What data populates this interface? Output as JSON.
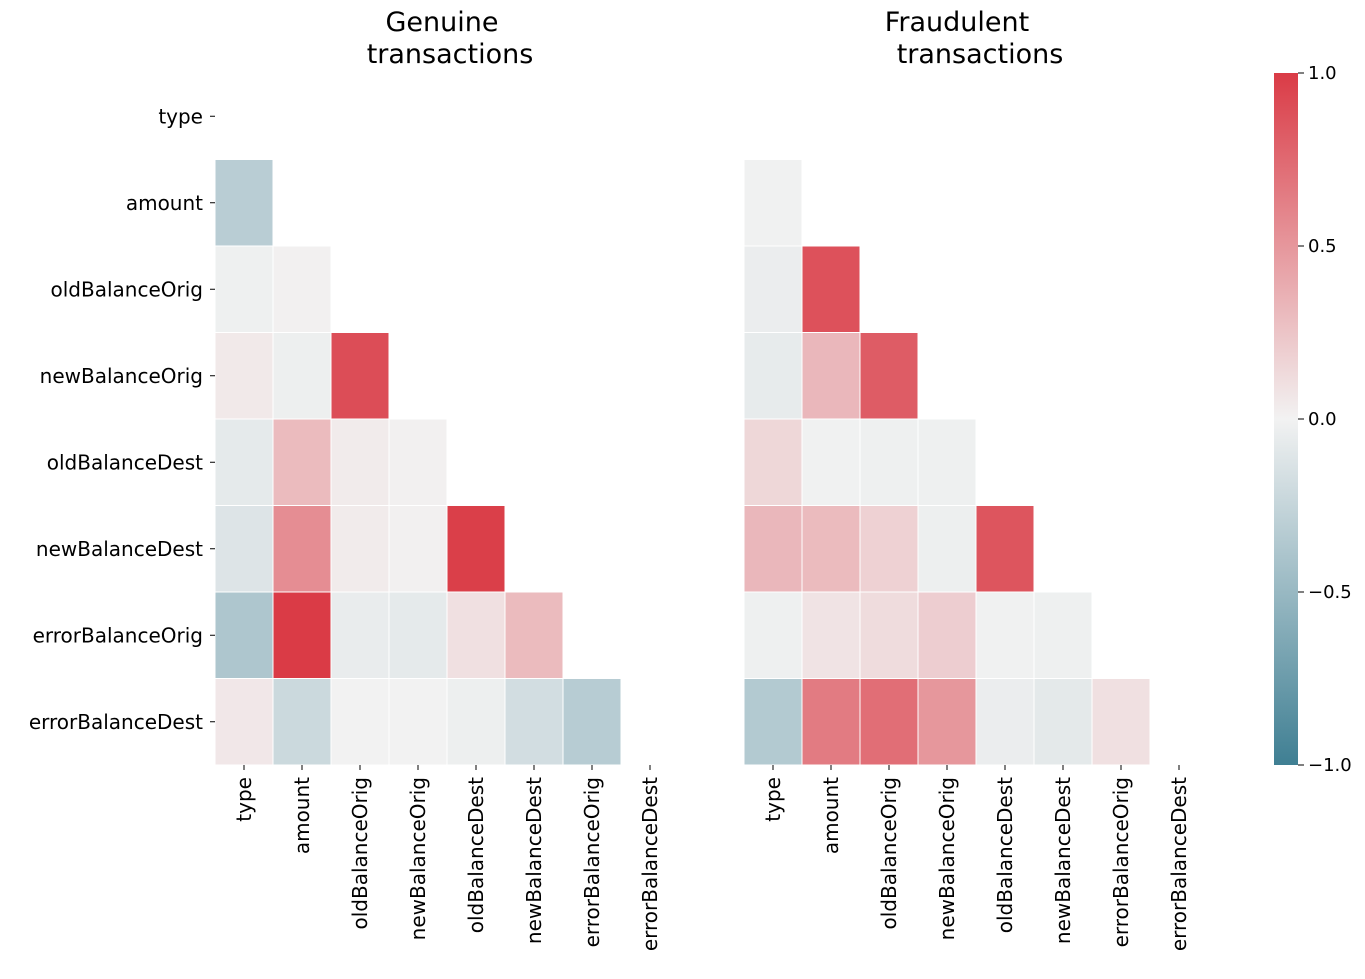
{
  "chart_data": [
    {
      "type": "heatmap",
      "title_lines": [
        "Genuine",
        "transactions"
      ],
      "row_labels": [
        "type",
        "amount",
        "oldBalanceOrig",
        "newBalanceOrig",
        "oldBalanceDest",
        "newBalanceDest",
        "errorBalanceOrig",
        "errorBalanceDest"
      ],
      "col_labels": [
        "type",
        "amount",
        "oldBalanceOrig",
        "newBalanceOrig",
        "oldBalanceDest",
        "newBalanceDest",
        "errorBalanceOrig",
        "errorBalanceDest"
      ],
      "mask": "upper-triangle-including-diagonal",
      "values": [
        [
          null,
          null,
          null,
          null,
          null,
          null,
          null,
          null
        ],
        [
          -0.32,
          null,
          null,
          null,
          null,
          null,
          null,
          null
        ],
        [
          -0.02,
          0.01,
          null,
          null,
          null,
          null,
          null,
          null
        ],
        [
          0.05,
          -0.03,
          0.9,
          null,
          null,
          null,
          null,
          null
        ],
        [
          -0.07,
          0.3,
          0.04,
          0.01,
          null,
          null,
          null,
          null
        ],
        [
          -0.12,
          0.55,
          0.04,
          0.01,
          0.98,
          null,
          null,
          null
        ],
        [
          -0.38,
          1.0,
          -0.05,
          -0.07,
          0.1,
          0.3,
          null,
          null
        ],
        [
          0.06,
          -0.22,
          0.0,
          0.0,
          -0.03,
          -0.18,
          -0.33,
          null
        ]
      ]
    },
    {
      "type": "heatmap",
      "title_lines": [
        "Fraudulent",
        "transactions"
      ],
      "row_labels": [
        "type",
        "amount",
        "oldBalanceOrig",
        "newBalanceOrig",
        "oldBalanceDest",
        "newBalanceDest",
        "errorBalanceOrig",
        "errorBalanceDest"
      ],
      "col_labels": [
        "type",
        "amount",
        "oldBalanceOrig",
        "newBalanceOrig",
        "oldBalanceDest",
        "newBalanceDest",
        "errorBalanceOrig",
        "errorBalanceDest"
      ],
      "mask": "upper-triangle-including-diagonal",
      "values": [
        [
          null,
          null,
          null,
          null,
          null,
          null,
          null,
          null
        ],
        [
          -0.01,
          null,
          null,
          null,
          null,
          null,
          null,
          null
        ],
        [
          -0.04,
          0.88,
          null,
          null,
          null,
          null,
          null,
          null
        ],
        [
          -0.06,
          0.32,
          0.82,
          null,
          null,
          null,
          null,
          null
        ],
        [
          0.15,
          -0.01,
          -0.02,
          -0.02,
          null,
          null,
          null,
          null
        ],
        [
          0.32,
          0.3,
          0.18,
          -0.03,
          0.86,
          null,
          null,
          null
        ],
        [
          -0.02,
          0.08,
          0.12,
          0.2,
          -0.01,
          -0.02,
          null,
          null
        ],
        [
          -0.35,
          0.65,
          0.72,
          0.5,
          -0.04,
          -0.08,
          0.1,
          null
        ]
      ]
    }
  ],
  "colorbar": {
    "min": -1.0,
    "max": 1.0,
    "tick_values": [
      1.0,
      0.5,
      0.0,
      -0.5,
      -1.0
    ],
    "tick_labels": [
      "1.0",
      "0.5",
      "0.0",
      "−0.5",
      "−1.0"
    ],
    "colors": {
      "negative": "#3f7f93",
      "neutral": "#f2f2f2",
      "positive": "#da3b46"
    }
  }
}
